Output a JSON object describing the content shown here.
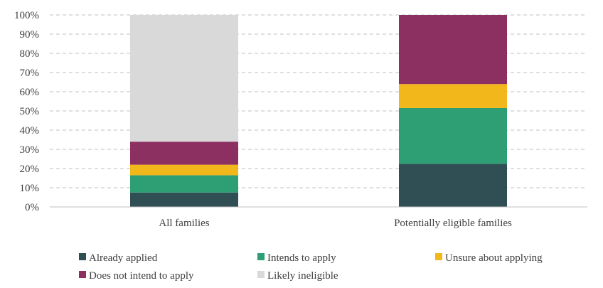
{
  "chart_data": {
    "type": "bar",
    "stacked": true,
    "title": "",
    "xlabel": "",
    "ylabel": "",
    "ylim": [
      0,
      100
    ],
    "y_ticks": [
      "0%",
      "10%",
      "20%",
      "30%",
      "40%",
      "50%",
      "60%",
      "70%",
      "80%",
      "90%",
      "100%"
    ],
    "y_tick_values": [
      0,
      10,
      20,
      30,
      40,
      50,
      60,
      70,
      80,
      90,
      100
    ],
    "grid": "horizontal-dashed",
    "legend_position": "bottom",
    "categories": [
      "All families",
      "Potentially eligible families"
    ],
    "series": [
      {
        "name": "Already applied",
        "color": "#2F4F55",
        "values": [
          7.5,
          22.5
        ]
      },
      {
        "name": "Intends to apply",
        "color": "#2E9F74",
        "values": [
          9.0,
          29.0
        ]
      },
      {
        "name": "Unsure about applying",
        "color": "#F2B71A",
        "values": [
          5.5,
          12.5
        ]
      },
      {
        "name": "Does not intend to apply",
        "color": "#8B3060",
        "values": [
          12.0,
          36.0
        ]
      },
      {
        "name": "Likely ineligible",
        "color": "#D9D9D9",
        "values": [
          66.0,
          0
        ]
      }
    ]
  }
}
